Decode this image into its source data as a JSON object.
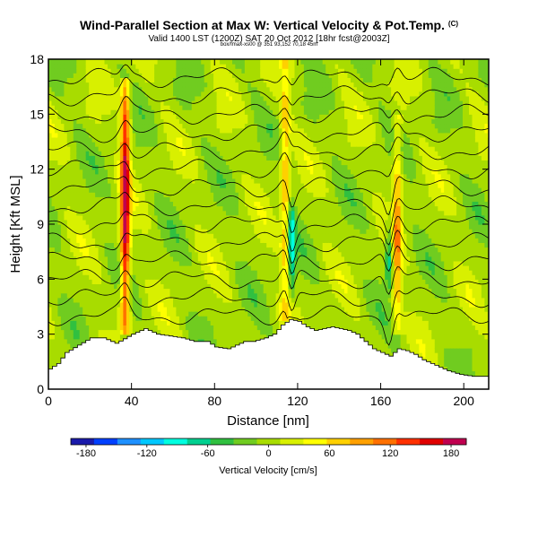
{
  "header": {
    "title": "Wind-Parallel Section at Max W: Vertical Velocity & Pot.Temp.",
    "title_mark": "(C)",
    "subtitle": "Valid 1400 LST (1200Z) SAT 20 Oct 2012 [18hr fcst@2003Z]",
    "small_line": "box/fmax-xs00 @ 351 93,152 70,18 45m"
  },
  "chart_data": {
    "type": "heatmap",
    "title": "Wind-Parallel Section at Max W: Vertical Velocity & Pot.Temp.",
    "xlabel": "Distance [nm]",
    "ylabel": "Height [Kft MSL]",
    "xlim": [
      0,
      212
    ],
    "ylim": [
      0,
      18
    ],
    "xticks": [
      0,
      40,
      80,
      120,
      160,
      200
    ],
    "yticks": [
      0,
      3,
      6,
      9,
      12,
      15,
      18
    ],
    "grid": false,
    "colorbar": {
      "label": "Vertical Velocity [cm/s]",
      "ticks": [
        -180,
        -120,
        -60,
        0,
        60,
        120,
        180
      ],
      "range": [
        -195,
        195
      ],
      "colors": [
        "#1a1aaa",
        "#0040ff",
        "#1e90ff",
        "#00c8ff",
        "#00ffe0",
        "#00d090",
        "#30c040",
        "#70cc20",
        "#a8dc00",
        "#d8f000",
        "#ffff00",
        "#ffd000",
        "#ffa000",
        "#ff7000",
        "#ff3000",
        "#e00000",
        "#c00050"
      ]
    },
    "updrafts": [
      {
        "x": 37,
        "peak": 185,
        "from_ft": 3,
        "to_ft": 17
      },
      {
        "x": 114,
        "peak": 80,
        "from_ft": 3.8,
        "to_ft": 18
      },
      {
        "x": 168,
        "peak": 90,
        "from_ft": 3,
        "to_ft": 15
      }
    ],
    "downdrafts": [
      {
        "x": 117,
        "peak": -90,
        "from_ft": 4.5,
        "to_ft": 11
      },
      {
        "x": 164,
        "peak": -75,
        "from_ft": 5,
        "to_ft": 10
      }
    ],
    "terrain": [
      [
        0,
        1.1
      ],
      [
        4,
        1.4
      ],
      [
        8,
        2.0
      ],
      [
        14,
        2.4
      ],
      [
        20,
        2.8
      ],
      [
        26,
        2.8
      ],
      [
        32,
        2.5
      ],
      [
        40,
        3.0
      ],
      [
        46,
        3.3
      ],
      [
        52,
        3.0
      ],
      [
        58,
        2.9
      ],
      [
        64,
        2.8
      ],
      [
        70,
        2.6
      ],
      [
        76,
        2.6
      ],
      [
        80,
        2.3
      ],
      [
        86,
        2.2
      ],
      [
        90,
        2.4
      ],
      [
        94,
        2.6
      ],
      [
        98,
        2.6
      ],
      [
        104,
        2.8
      ],
      [
        108,
        3.0
      ],
      [
        112,
        3.5
      ],
      [
        116,
        3.8
      ],
      [
        120,
        3.7
      ],
      [
        124,
        3.4
      ],
      [
        128,
        3.2
      ],
      [
        132,
        3.3
      ],
      [
        136,
        3.4
      ],
      [
        140,
        3.3
      ],
      [
        144,
        3.2
      ],
      [
        148,
        3.0
      ],
      [
        152,
        2.6
      ],
      [
        156,
        2.2
      ],
      [
        160,
        2.0
      ],
      [
        164,
        1.8
      ],
      [
        168,
        2.2
      ],
      [
        172,
        2.1
      ],
      [
        176,
        1.9
      ],
      [
        180,
        1.6
      ],
      [
        186,
        1.3
      ],
      [
        192,
        1.0
      ],
      [
        198,
        0.8
      ],
      [
        204,
        0.7
      ],
      [
        212,
        0.7
      ]
    ],
    "isentropes_kft": [
      4,
      5,
      6,
      7,
      8,
      9,
      10,
      11,
      12,
      13,
      14,
      15,
      16,
      17
    ]
  }
}
